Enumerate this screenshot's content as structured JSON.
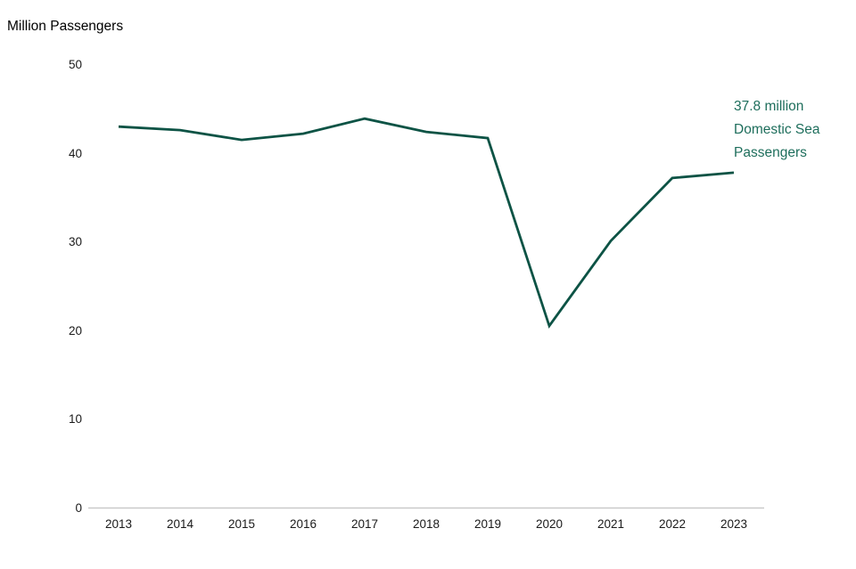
{
  "chart_data": {
    "type": "line",
    "title": "Million Passengers",
    "categories": [
      "2013",
      "2014",
      "2015",
      "2016",
      "2017",
      "2018",
      "2019",
      "2020",
      "2021",
      "2022",
      "2023"
    ],
    "series": [
      {
        "name": "Domestic Sea Passengers",
        "values": [
          43.0,
          42.6,
          41.5,
          42.2,
          43.9,
          42.4,
          41.7,
          20.5,
          30.1,
          37.2,
          37.8
        ]
      }
    ],
    "xlabel": "",
    "ylabel": "Million Passengers",
    "ylim": [
      0,
      50
    ],
    "yticks": [
      0,
      10,
      20,
      30,
      40,
      50
    ],
    "grid": false,
    "legend_position": "none",
    "line_color": "#0d5345",
    "axis_color": "#c9c9c9",
    "tick_label_color": "#1a1a1a",
    "annotation": {
      "lines": [
        "37.8 million",
        "Domestic Sea",
        "Passengers"
      ],
      "color": "#1e6e5c"
    }
  }
}
